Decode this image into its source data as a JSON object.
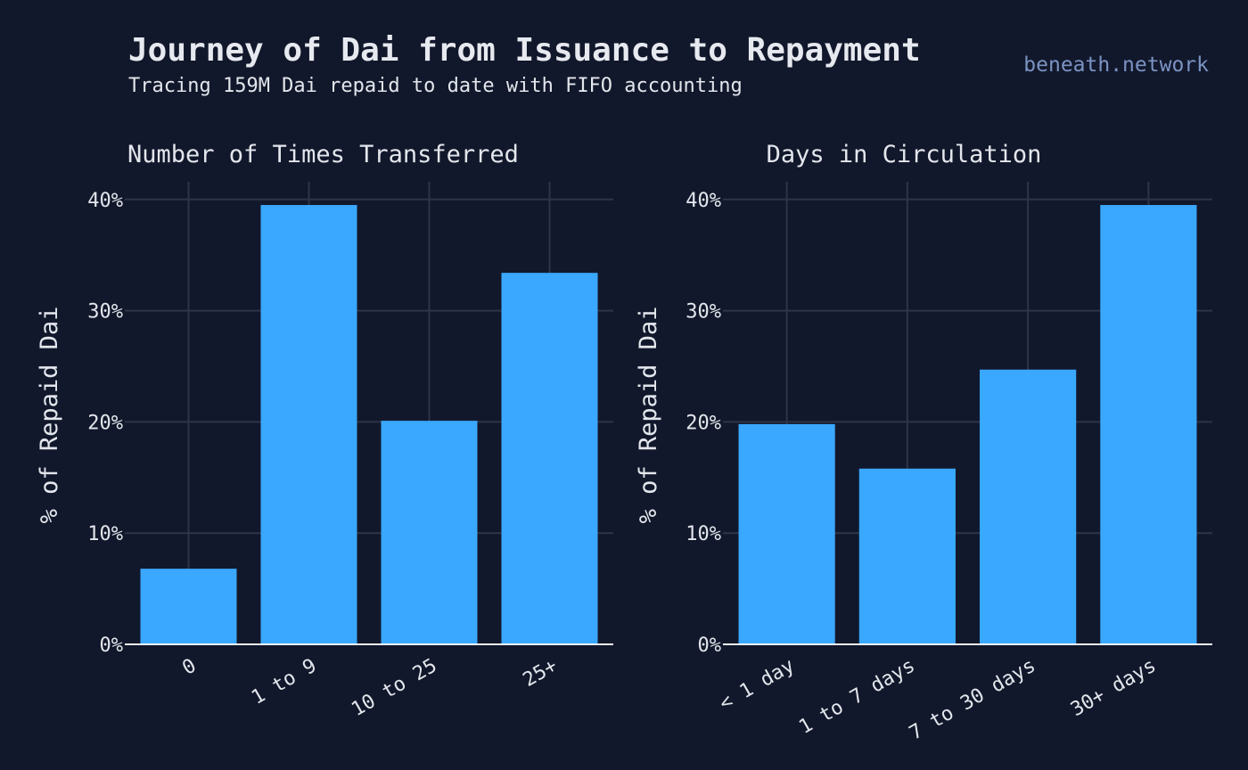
{
  "header": {
    "title": "Journey of Dai from Issuance to Repayment",
    "subtitle": "Tracing 159M Dai repaid to date with FIFO accounting",
    "brand": "beneath.network"
  },
  "colors": {
    "background": "#12182b",
    "bar": "#3aa8ff",
    "grid": "#2c3547",
    "brand": "#7b93c4"
  },
  "chart_data": [
    {
      "type": "bar",
      "title": "Number of Times Transferred",
      "xlabel": "",
      "ylabel": "% of Repaid Dai",
      "categories": [
        "0",
        "1 to 9",
        "10 to 25",
        "25+"
      ],
      "values": [
        6.8,
        39.5,
        20.1,
        33.4
      ],
      "ylim": [
        0,
        41.6
      ],
      "yticks": [
        0,
        10,
        20,
        30,
        40
      ],
      "ytick_labels": [
        "0%",
        "10%",
        "20%",
        "30%",
        "40%"
      ],
      "grid": true
    },
    {
      "type": "bar",
      "title": "Days in Circulation",
      "xlabel": "",
      "ylabel": "% of Repaid Dai",
      "categories": [
        "< 1 day",
        "1 to 7 days",
        "7 to 30 days",
        "30+ days"
      ],
      "values": [
        19.8,
        15.8,
        24.7,
        39.5
      ],
      "ylim": [
        0,
        41.6
      ],
      "yticks": [
        0,
        10,
        20,
        30,
        40
      ],
      "ytick_labels": [
        "0%",
        "10%",
        "20%",
        "30%",
        "40%"
      ],
      "grid": true
    }
  ]
}
